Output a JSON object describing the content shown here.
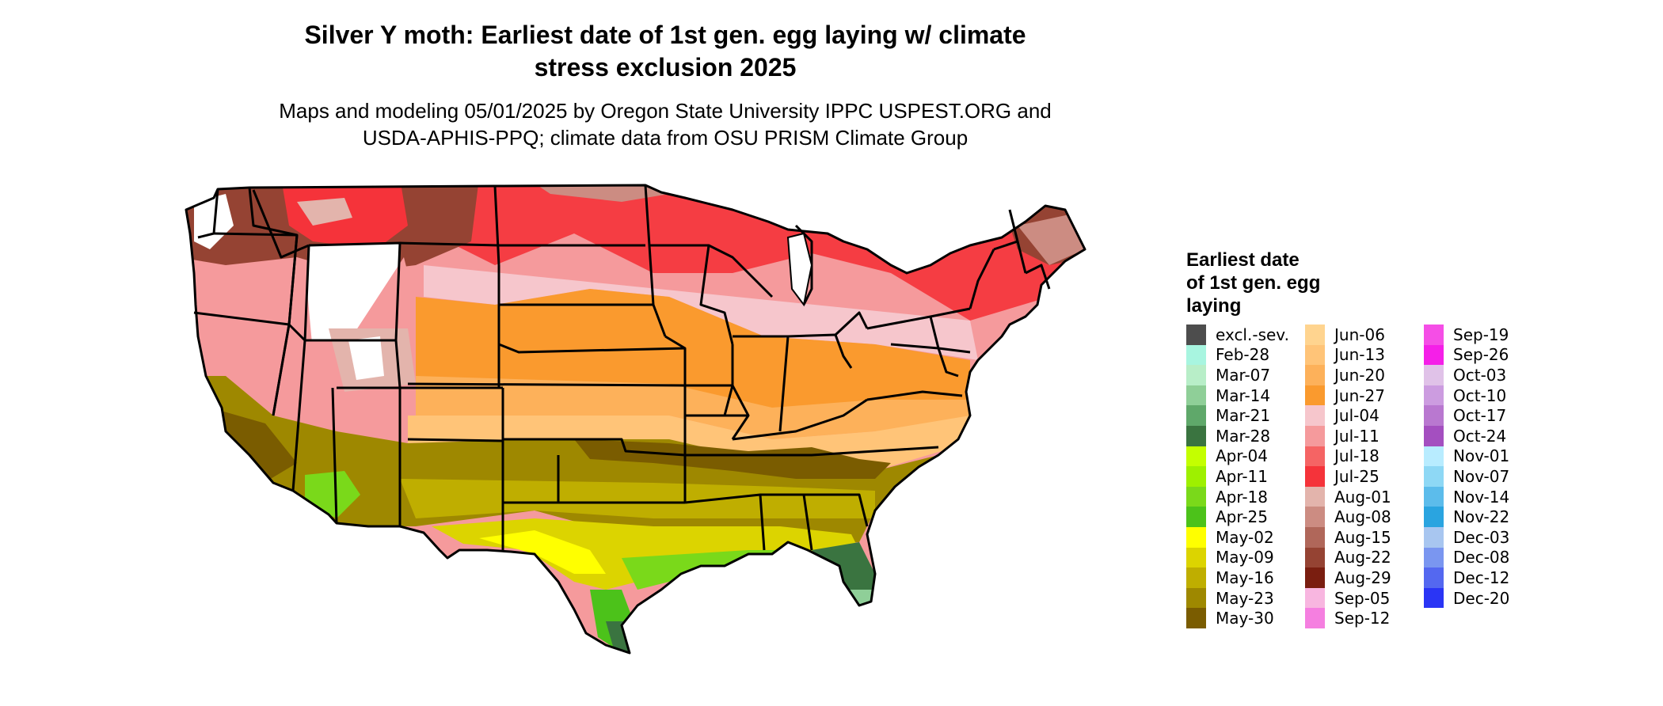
{
  "title": {
    "line1": "Silver Y moth: Earliest date of 1st gen. egg laying w/ climate",
    "line2": "stress exclusion 2025"
  },
  "subtitle": {
    "line1": "Maps and modeling 05/01/2025 by Oregon State University IPPC USPEST.ORG and",
    "line2": "USDA-APHIS-PPQ; climate data from OSU PRISM Climate Group"
  },
  "legend": {
    "title_lines": [
      "Earliest date",
      "of 1st gen. egg",
      "laying"
    ],
    "columns": [
      [
        {
          "label": "excl.-sev.",
          "color": "#4d4d4d"
        },
        {
          "label": "Feb-28",
          "color": "#a8f5e0"
        },
        {
          "label": "Mar-07",
          "color": "#b8eec8"
        },
        {
          "label": "Mar-14",
          "color": "#8fcf98"
        },
        {
          "label": "Mar-21",
          "color": "#5fa86a"
        },
        {
          "label": "Mar-28",
          "color": "#3a7440"
        },
        {
          "label": "Apr-04",
          "color": "#c4ff00"
        },
        {
          "label": "Apr-11",
          "color": "#9ef000"
        },
        {
          "label": "Apr-18",
          "color": "#7ad91a"
        },
        {
          "label": "Apr-25",
          "color": "#4cc21a"
        },
        {
          "label": "May-02",
          "color": "#ffff00"
        },
        {
          "label": "May-09",
          "color": "#dcd400"
        },
        {
          "label": "May-16",
          "color": "#bfae00"
        },
        {
          "label": "May-23",
          "color": "#9e8800"
        },
        {
          "label": "May-30",
          "color": "#7a5c00"
        }
      ],
      [
        {
          "label": "Jun-06",
          "color": "#ffd48f"
        },
        {
          "label": "Jun-13",
          "color": "#ffc478"
        },
        {
          "label": "Jun-20",
          "color": "#fdb15a"
        },
        {
          "label": "Jun-27",
          "color": "#fa9a2e"
        },
        {
          "label": "Jul-04",
          "color": "#f6c6cc"
        },
        {
          "label": "Jul-11",
          "color": "#f59a9c"
        },
        {
          "label": "Jul-18",
          "color": "#f56464"
        },
        {
          "label": "Jul-25",
          "color": "#f5333a"
        },
        {
          "label": "Aug-01",
          "color": "#e3b4ac"
        },
        {
          "label": "Aug-08",
          "color": "#cc8c82"
        },
        {
          "label": "Aug-15",
          "color": "#b0675a"
        },
        {
          "label": "Aug-22",
          "color": "#954333"
        },
        {
          "label": "Aug-29",
          "color": "#7a1e10"
        },
        {
          "label": "Sep-05",
          "color": "#f8b6e0"
        },
        {
          "label": "Sep-12",
          "color": "#f57fe0"
        }
      ],
      [
        {
          "label": "Sep-19",
          "color": "#f54ee6"
        },
        {
          "label": "Sep-26",
          "color": "#f51fe8"
        },
        {
          "label": "Oct-03",
          "color": "#e0c2e8"
        },
        {
          "label": "Oct-10",
          "color": "#cc9ce0"
        },
        {
          "label": "Oct-17",
          "color": "#b978d0"
        },
        {
          "label": "Oct-24",
          "color": "#a44fc0"
        },
        {
          "label": "Nov-01",
          "color": "#b8ecff"
        },
        {
          "label": "Nov-07",
          "color": "#8ed8f5"
        },
        {
          "label": "Nov-14",
          "color": "#5cbceb"
        },
        {
          "label": "Nov-22",
          "color": "#2aa4e0"
        },
        {
          "label": "Dec-03",
          "color": "#a8c6f0"
        },
        {
          "label": "Dec-08",
          "color": "#7a96f0"
        },
        {
          "label": "Dec-12",
          "color": "#5468f0"
        },
        {
          "label": "Dec-20",
          "color": "#2a35f5"
        }
      ]
    ]
  },
  "map_colors": {
    "outline": "#000000",
    "excluded": "#ffffff",
    "north_red": "#f5333a",
    "north_pink": "#f59a9c",
    "brown": "#954333",
    "mid_orange": "#fa9a2e",
    "light_orange": "#ffc478",
    "south_olive": "#9e8800",
    "gulf_yellow": "#dcd400",
    "coastal_green": "#7ad91a",
    "florida_green": "#3a7440"
  }
}
